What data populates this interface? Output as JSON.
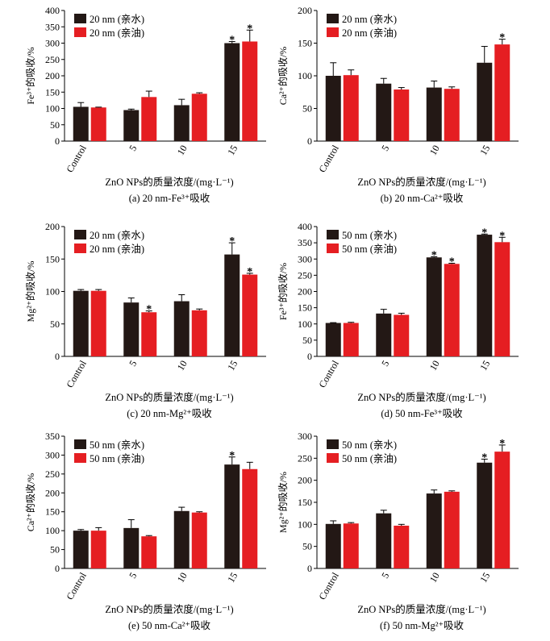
{
  "colors": {
    "hydrophilic": "#231815",
    "lipophilic": "#e51e22"
  },
  "chart_data": [
    {
      "type": "bar",
      "caption": "(a) 20 nm-Fe³⁺吸收",
      "ylabel": "Fe³⁺的吸收/%",
      "xlabel": "ZnO NPs的质量浓度/(mg·L⁻¹)",
      "categories": [
        "Control",
        "5",
        "10",
        "15"
      ],
      "ylim": [
        0,
        400
      ],
      "yticks": [
        0,
        50,
        100,
        150,
        200,
        250,
        300,
        350,
        400
      ],
      "legend": [
        "20 nm (亲水)",
        "20 nm (亲油)"
      ],
      "series": [
        {
          "name": "20 nm (亲水)",
          "values": [
            105,
            95,
            110,
            300
          ],
          "errors": [
            13,
            3,
            18,
            5
          ],
          "sig": [
            false,
            false,
            false,
            true
          ]
        },
        {
          "name": "20 nm (亲油)",
          "values": [
            103,
            135,
            145,
            305
          ],
          "errors": [
            1,
            18,
            3,
            35
          ],
          "sig": [
            false,
            false,
            false,
            true
          ]
        }
      ]
    },
    {
      "type": "bar",
      "caption": "(b) 20 nm-Ca²⁺吸收",
      "ylabel": "Ca²⁺的吸收/%",
      "xlabel": "ZnO NPs的质量浓度/(mg·L⁻¹)",
      "categories": [
        "Control",
        "5",
        "10",
        "15"
      ],
      "ylim": [
        0,
        200
      ],
      "yticks": [
        0,
        50,
        100,
        150,
        200
      ],
      "legend": [
        "20 nm (亲水)",
        "20 nm (亲油)"
      ],
      "series": [
        {
          "name": "20 nm (亲水)",
          "values": [
            100,
            88,
            82,
            120
          ],
          "errors": [
            20,
            8,
            10,
            25
          ],
          "sig": [
            false,
            false,
            false,
            false
          ]
        },
        {
          "name": "20 nm (亲油)",
          "values": [
            101,
            79,
            80,
            148
          ],
          "errors": [
            8,
            3,
            3,
            8
          ],
          "sig": [
            false,
            false,
            false,
            true
          ]
        }
      ]
    },
    {
      "type": "bar",
      "caption": "(c) 20 nm-Mg²⁺吸收",
      "ylabel": "Mg²⁺的吸收/%",
      "xlabel": "ZnO NPs的质量浓度/(mg·L⁻¹)",
      "categories": [
        "Control",
        "5",
        "10",
        "15"
      ],
      "ylim": [
        0,
        200
      ],
      "yticks": [
        0,
        50,
        100,
        150,
        200
      ],
      "legend": [
        "20 nm (亲水)",
        "20 nm (亲油)"
      ],
      "series": [
        {
          "name": "20 nm (亲水)",
          "values": [
            101,
            83,
            85,
            157
          ],
          "errors": [
            2,
            7,
            10,
            18
          ],
          "sig": [
            false,
            false,
            false,
            true
          ]
        },
        {
          "name": "20 nm (亲油)",
          "values": [
            101,
            68,
            71,
            126
          ],
          "errors": [
            2,
            2,
            2,
            2
          ],
          "sig": [
            false,
            true,
            false,
            true
          ]
        }
      ]
    },
    {
      "type": "bar",
      "caption": "(d) 50 nm-Fe³⁺吸收",
      "ylabel": "Fe³⁺的吸收/%",
      "xlabel": "ZnO NPs的质量浓度/(mg·L⁻¹)",
      "categories": [
        "Control",
        "5",
        "10",
        "15"
      ],
      "ylim": [
        0,
        400
      ],
      "yticks": [
        0,
        50,
        100,
        150,
        200,
        250,
        300,
        350,
        400
      ],
      "legend": [
        "50 nm (亲水)",
        "50 nm (亲油)"
      ],
      "series": [
        {
          "name": "50 nm (亲水)",
          "values": [
            103,
            132,
            305,
            375
          ],
          "errors": [
            1,
            13,
            2,
            2
          ],
          "sig": [
            false,
            false,
            true,
            true
          ]
        },
        {
          "name": "50 nm (亲油)",
          "values": [
            103,
            128,
            285,
            352
          ],
          "errors": [
            2,
            5,
            2,
            15
          ],
          "sig": [
            false,
            false,
            true,
            true
          ]
        }
      ]
    },
    {
      "type": "bar",
      "caption": "(e) 50 nm-Ca²⁺吸收",
      "ylabel": "Ca²⁺的吸收/%",
      "xlabel": "ZnO NPs的质量浓度/(mg·L⁻¹)",
      "categories": [
        "Control",
        "5",
        "10",
        "15"
      ],
      "ylim": [
        0,
        350
      ],
      "yticks": [
        0,
        50,
        100,
        150,
        200,
        250,
        300,
        350
      ],
      "legend": [
        "50 nm (亲水)",
        "50 nm (亲油)"
      ],
      "series": [
        {
          "name": "50 nm (亲水)",
          "values": [
            100,
            107,
            152,
            275
          ],
          "errors": [
            3,
            22,
            10,
            20
          ],
          "sig": [
            false,
            false,
            false,
            true
          ]
        },
        {
          "name": "50 nm (亲油)",
          "values": [
            100,
            85,
            148,
            263
          ],
          "errors": [
            8,
            2,
            2,
            18
          ],
          "sig": [
            false,
            false,
            false,
            false
          ]
        }
      ]
    },
    {
      "type": "bar",
      "caption": "(f) 50 nm-Mg²⁺吸收",
      "ylabel": "Mg²⁺的吸收/%",
      "xlabel": "ZnO NPs的质量浓度/(mg·L⁻¹)",
      "categories": [
        "Control",
        "5",
        "10",
        "15"
      ],
      "ylim": [
        0,
        300
      ],
      "yticks": [
        0,
        50,
        100,
        150,
        200,
        250,
        300
      ],
      "legend": [
        "50 nm (亲水)",
        "50 nm (亲油)"
      ],
      "series": [
        {
          "name": "50 nm (亲水)",
          "values": [
            101,
            125,
            170,
            240
          ],
          "errors": [
            7,
            7,
            8,
            8
          ],
          "sig": [
            false,
            false,
            false,
            true
          ]
        },
        {
          "name": "50 nm (亲油)",
          "values": [
            102,
            97,
            174,
            265
          ],
          "errors": [
            2,
            3,
            2,
            15
          ],
          "sig": [
            false,
            false,
            false,
            true
          ]
        }
      ]
    }
  ]
}
